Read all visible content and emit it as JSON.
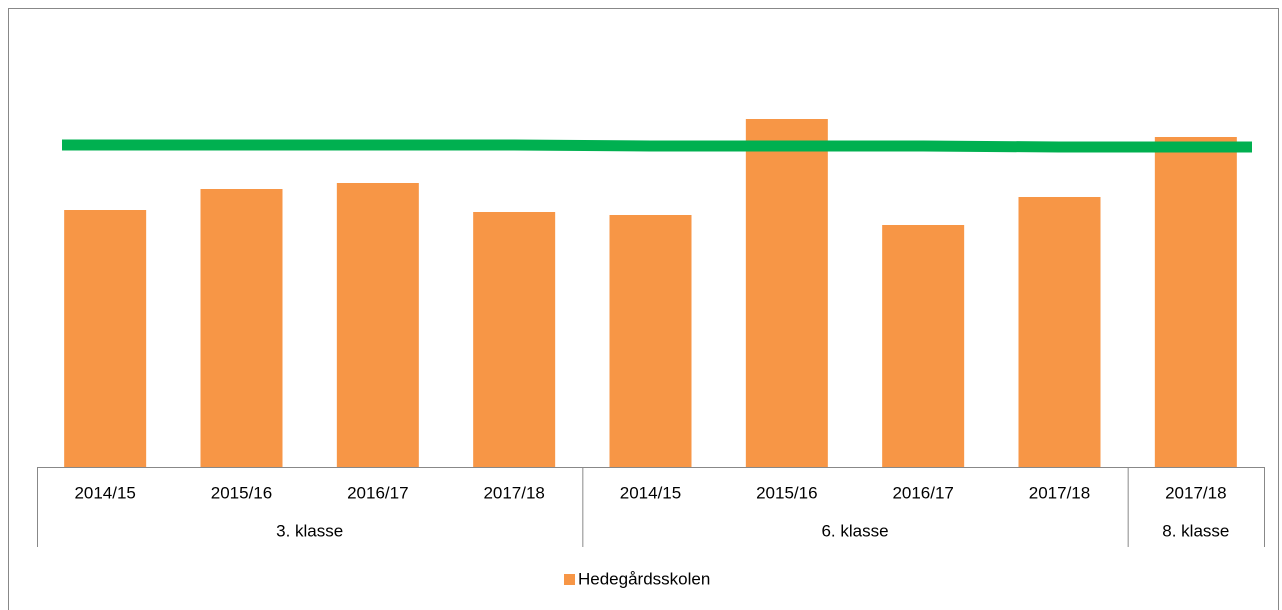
{
  "chart_data": {
    "type": "bar",
    "categories": [
      "2014/15",
      "2015/16",
      "2016/17",
      "2017/18",
      "2014/15",
      "2015/16",
      "2016/17",
      "2017/18",
      "2017/18"
    ],
    "groups": [
      {
        "label": "3. klasse",
        "size": 4
      },
      {
        "label": "6. klasse",
        "size": 4
      },
      {
        "label": "8. klasse",
        "size": 1
      }
    ],
    "series": [
      {
        "name": "Hedegårdsskolen",
        "color": "#f79646",
        "values": [
          257,
          278,
          284,
          255,
          252,
          348,
          242,
          270,
          330
        ]
      }
    ],
    "reference_line": {
      "color": "#00b050",
      "values": [
        322,
        322,
        322,
        322,
        321,
        321,
        321,
        320,
        320
      ]
    },
    "ylim": [
      0,
      450
    ],
    "legend": "bottom"
  }
}
